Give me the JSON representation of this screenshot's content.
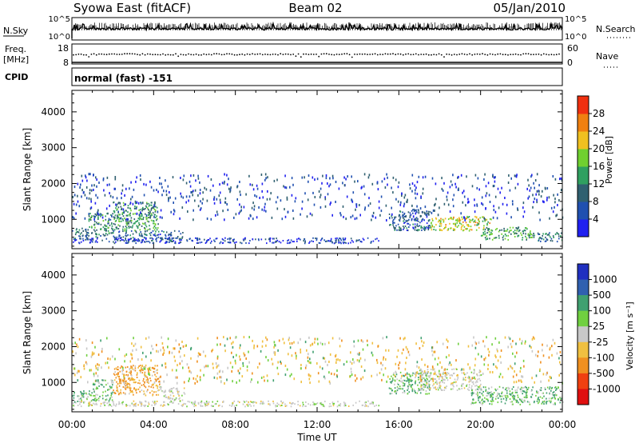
{
  "header": {
    "station": "Syowa East (fitACF)",
    "beam": "Beam 02",
    "date": "05/Jan/2010"
  },
  "status_panel": {
    "nsky_label": "N.Sky",
    "nsky_ticks": [
      "10^5",
      "10^0"
    ],
    "nsearch_label": "N.Search",
    "nsearch_ticks": [
      "10^5",
      "10^0"
    ],
    "freq_label": "Freq.",
    "freq_unit": "[MHz]",
    "freq_ticks": [
      "18",
      "8"
    ],
    "nave_label": "Nave",
    "nave_ticks": [
      "60",
      "0"
    ],
    "cpid_label": "CPID",
    "cpid_value": "normal (fast) -151"
  },
  "x_axis": {
    "label": "Time UT",
    "ticks": [
      "00:00",
      "04:00",
      "08:00",
      "12:00",
      "16:00",
      "20:00",
      "00:00"
    ],
    "range_hours": [
      0,
      24
    ]
  },
  "chart_data": [
    {
      "type": "heatmap",
      "panel": "power",
      "ylabel": "Slant Range [km]",
      "yticks": [
        "1000",
        "2000",
        "3000",
        "4000"
      ],
      "ylim": [
        180,
        4600
      ],
      "xlim": [
        0,
        24
      ],
      "colorbar_label": "Power [dB]",
      "colorbar_ticks": [
        "4",
        "8",
        "12",
        "16",
        "20",
        "24",
        "28"
      ],
      "colorbar_colors": [
        "#2020f0",
        "#2050b0",
        "#306070",
        "#30a060",
        "#70d030",
        "#f0c020",
        "#f08010",
        "#f03010"
      ],
      "colorbar_range": [
        0,
        32
      ],
      "echo_regions": [
        {
          "t": [
            0.0,
            0.8
          ],
          "range": [
            450,
            800
          ],
          "level": 10
        },
        {
          "t": [
            0.8,
            2.0
          ],
          "range": [
            500,
            1200
          ],
          "level": 12
        },
        {
          "t": [
            2.0,
            4.2
          ],
          "range": [
            700,
            1500
          ],
          "level": 14
        },
        {
          "t": [
            2.0,
            5.4
          ],
          "range": [
            400,
            700
          ],
          "level": 8
        },
        {
          "t": [
            0.0,
            7.0
          ],
          "range": [
            350,
            500
          ],
          "level": 5
        },
        {
          "t": [
            7.0,
            15.0
          ],
          "range": [
            350,
            500
          ],
          "level": 5
        },
        {
          "t": [
            15.5,
            17.5
          ],
          "range": [
            700,
            1300
          ],
          "level": 8
        },
        {
          "t": [
            17.5,
            20.5
          ],
          "range": [
            700,
            1100
          ],
          "level": 20
        },
        {
          "t": [
            20.0,
            22.5
          ],
          "range": [
            450,
            800
          ],
          "level": 14
        },
        {
          "t": [
            22.5,
            24.0
          ],
          "range": [
            400,
            650
          ],
          "level": 10
        },
        {
          "t": [
            0.0,
            24.0
          ],
          "range": [
            1000,
            2300
          ],
          "level": 6
        }
      ]
    },
    {
      "type": "heatmap",
      "panel": "velocity",
      "ylabel": "Slant Range [km]",
      "yticks": [
        "1000",
        "2000",
        "3000",
        "4000"
      ],
      "ylim": [
        180,
        4600
      ],
      "xlim": [
        0,
        24
      ],
      "colorbar_label": "Velocity [m s⁻¹]",
      "colorbar_ticks": [
        "1000",
        "500",
        "100",
        "25",
        "-25",
        "-100",
        "-500",
        "-1000"
      ],
      "colorbar_colors": [
        "#2030c0",
        "#3060b0",
        "#40a070",
        "#70d040",
        "#c8c8c8",
        "#f0c040",
        "#f09020",
        "#f04010",
        "#e01010"
      ],
      "echo_regions": [
        {
          "t": [
            0.0,
            1.0
          ],
          "range": [
            450,
            800
          ],
          "v": 100
        },
        {
          "t": [
            1.0,
            2.0
          ],
          "range": [
            500,
            1100
          ],
          "v": 100
        },
        {
          "t": [
            2.0,
            4.3
          ],
          "range": [
            650,
            1500
          ],
          "v": -500
        },
        {
          "t": [
            4.3,
            5.5
          ],
          "range": [
            500,
            900
          ],
          "v": 0
        },
        {
          "t": [
            0.0,
            15.0
          ],
          "range": [
            350,
            500
          ],
          "v": 0
        },
        {
          "t": [
            15.5,
            17.5
          ],
          "range": [
            700,
            1300
          ],
          "v": 100
        },
        {
          "t": [
            17.0,
            20.0
          ],
          "range": [
            800,
            1400
          ],
          "v": 0
        },
        {
          "t": [
            19.5,
            24.0
          ],
          "range": [
            400,
            900
          ],
          "v": 100
        },
        {
          "t": [
            0.0,
            24.0
          ],
          "range": [
            1000,
            2300
          ],
          "v": -25
        }
      ]
    }
  ]
}
